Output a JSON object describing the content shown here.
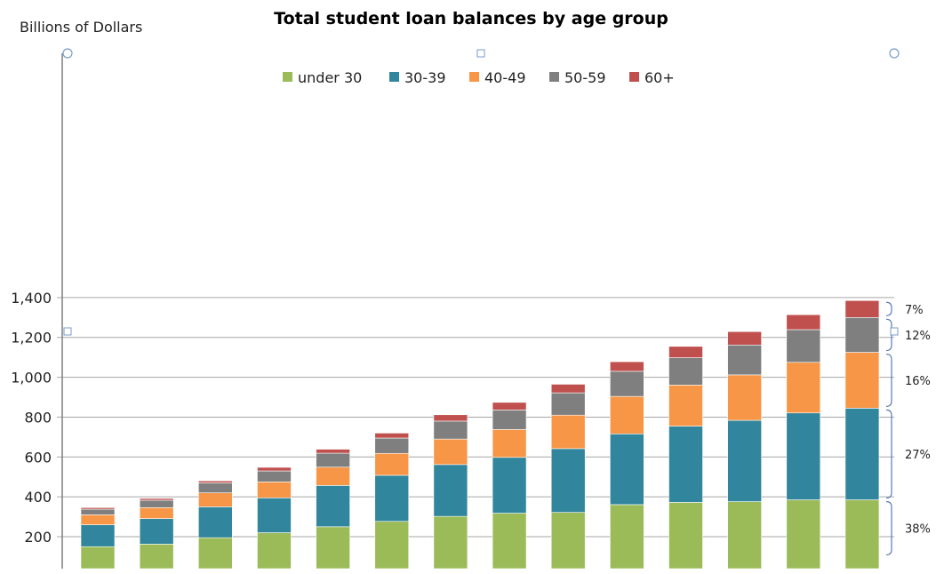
{
  "chart_data": {
    "type": "bar",
    "stacked": true,
    "title": "Total student loan balances by age group",
    "ylabel": "Billions of Dollars",
    "ylim": [
      100,
      1400
    ],
    "yticks": [
      200,
      400,
      600,
      800,
      1000,
      1200,
      1400
    ],
    "ytick_labels": [
      "200",
      "400",
      "600",
      "800",
      "1,000",
      "1,200",
      "1,400"
    ],
    "grid": true,
    "legend_position": "top-center",
    "series": [
      {
        "name": "under 30",
        "color": "#9bbb59",
        "values": [
          150,
          163,
          195,
          220,
          250,
          277,
          302,
          318,
          322,
          361,
          372,
          376,
          385,
          385
        ]
      },
      {
        "name": "30-39",
        "color": "#31859c",
        "values": [
          110,
          128,
          155,
          175,
          207,
          231,
          260,
          280,
          320,
          355,
          383,
          408,
          436,
          460
        ]
      },
      {
        "name": "40-49",
        "color": "#f79646",
        "values": [
          50,
          55,
          70,
          80,
          92,
          110,
          128,
          140,
          168,
          188,
          206,
          228,
          254,
          280
        ]
      },
      {
        "name": "50-59",
        "color": "#7f7f7f",
        "values": [
          28,
          37,
          50,
          55,
          70,
          77,
          90,
          98,
          112,
          126,
          137,
          150,
          164,
          175
        ]
      },
      {
        "name": "60+",
        "color": "#c0504d",
        "values": [
          8,
          9,
          10,
          18,
          20,
          25,
          32,
          38,
          43,
          48,
          57,
          67,
          75,
          85
        ]
      }
    ],
    "side_annotations": [
      {
        "label": "7%",
        "range": [
          1300,
          1385
        ]
      },
      {
        "label": "12%",
        "range": [
          1125,
          1300
        ]
      },
      {
        "label": "16%",
        "range": [
          845,
          1125
        ]
      },
      {
        "label": "27%",
        "range": [
          385,
          845
        ]
      },
      {
        "label": "38%",
        "range": [
          0,
          385
        ]
      }
    ]
  }
}
